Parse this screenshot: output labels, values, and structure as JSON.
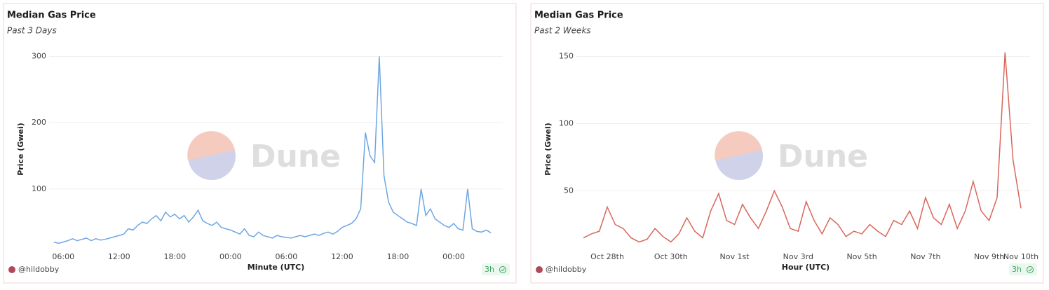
{
  "chart_data": [
    {
      "type": "line",
      "title": "Median Gas Price",
      "subtitle": "Past 3 Days",
      "x_label": "Minute (UTC)",
      "y_label": "Price (Gwei)",
      "author": "@hildobby",
      "freshness": "3h",
      "watermark": "Dune",
      "color": "#6ea6e3",
      "grid": true,
      "categories": [
        null,
        null,
        "06:00",
        null,
        null,
        null,
        null,
        null,
        null,
        null,
        null,
        null,
        null,
        null,
        "12:00",
        null,
        null,
        null,
        null,
        null,
        null,
        null,
        null,
        null,
        null,
        null,
        "18:00",
        null,
        null,
        null,
        null,
        null,
        null,
        null,
        null,
        null,
        null,
        null,
        "00:00",
        null,
        null,
        null,
        null,
        null,
        null,
        null,
        null,
        null,
        null,
        null,
        "06:00",
        null,
        null,
        null,
        null,
        null,
        null,
        null,
        null,
        null,
        null,
        null,
        "12:00",
        null,
        null,
        null,
        null,
        null,
        null,
        null,
        null,
        null,
        null,
        null,
        "18:00",
        null,
        null,
        null,
        null,
        null,
        null,
        null,
        null,
        null,
        null,
        null,
        "00:00",
        null,
        null,
        null,
        null,
        null,
        null,
        null,
        null
      ],
      "values": [
        20,
        18,
        20,
        22,
        25,
        22,
        24,
        26,
        22,
        25,
        23,
        24,
        26,
        28,
        30,
        32,
        40,
        38,
        45,
        50,
        48,
        55,
        60,
        52,
        65,
        58,
        62,
        55,
        60,
        50,
        58,
        68,
        52,
        48,
        45,
        50,
        42,
        40,
        38,
        35,
        32,
        40,
        30,
        28,
        35,
        30,
        28,
        26,
        30,
        28,
        27,
        26,
        28,
        30,
        28,
        30,
        32,
        30,
        33,
        35,
        32,
        36,
        42,
        45,
        48,
        55,
        70,
        185,
        150,
        140,
        300,
        120,
        80,
        65,
        60,
        55,
        50,
        48,
        45,
        100,
        60,
        70,
        55,
        50,
        45,
        42,
        48,
        40,
        38,
        100,
        40,
        36,
        35,
        38,
        34
      ],
      "ylim": [
        10,
        310
      ],
      "yticks": [
        100,
        200,
        300
      ]
    },
    {
      "type": "line",
      "title": "Median Gas Price",
      "subtitle": "Past 2 Weeks",
      "x_label": "Hour (UTC)",
      "y_label": "Price (Gwei)",
      "author": "@hildobby",
      "freshness": "3h",
      "watermark": "Dune",
      "color": "#d9665c",
      "grid": true,
      "categories": [
        null,
        null,
        null,
        "Oct 28th",
        null,
        null,
        null,
        null,
        null,
        null,
        null,
        "Oct 30th",
        null,
        null,
        null,
        null,
        null,
        null,
        null,
        "Nov 1st",
        null,
        null,
        null,
        null,
        null,
        null,
        null,
        "Nov 3rd",
        null,
        null,
        null,
        null,
        null,
        null,
        null,
        "Nov 5th",
        null,
        null,
        null,
        null,
        null,
        null,
        null,
        "Nov 7th",
        null,
        null,
        null,
        null,
        null,
        null,
        null,
        "Nov 9th",
        null,
        null,
        null,
        "Nov 10th"
      ],
      "values": [
        15,
        18,
        20,
        38,
        25,
        22,
        15,
        12,
        14,
        22,
        16,
        12,
        18,
        30,
        20,
        15,
        35,
        48,
        28,
        25,
        40,
        30,
        22,
        35,
        50,
        38,
        22,
        20,
        42,
        28,
        18,
        30,
        25,
        16,
        20,
        18,
        25,
        20,
        16,
        28,
        25,
        35,
        22,
        45,
        30,
        25,
        40,
        22,
        35,
        57,
        35,
        28,
        45,
        153,
        73,
        37
      ],
      "ylim": [
        7,
        155
      ],
      "yticks": [
        50,
        100,
        150
      ]
    }
  ]
}
